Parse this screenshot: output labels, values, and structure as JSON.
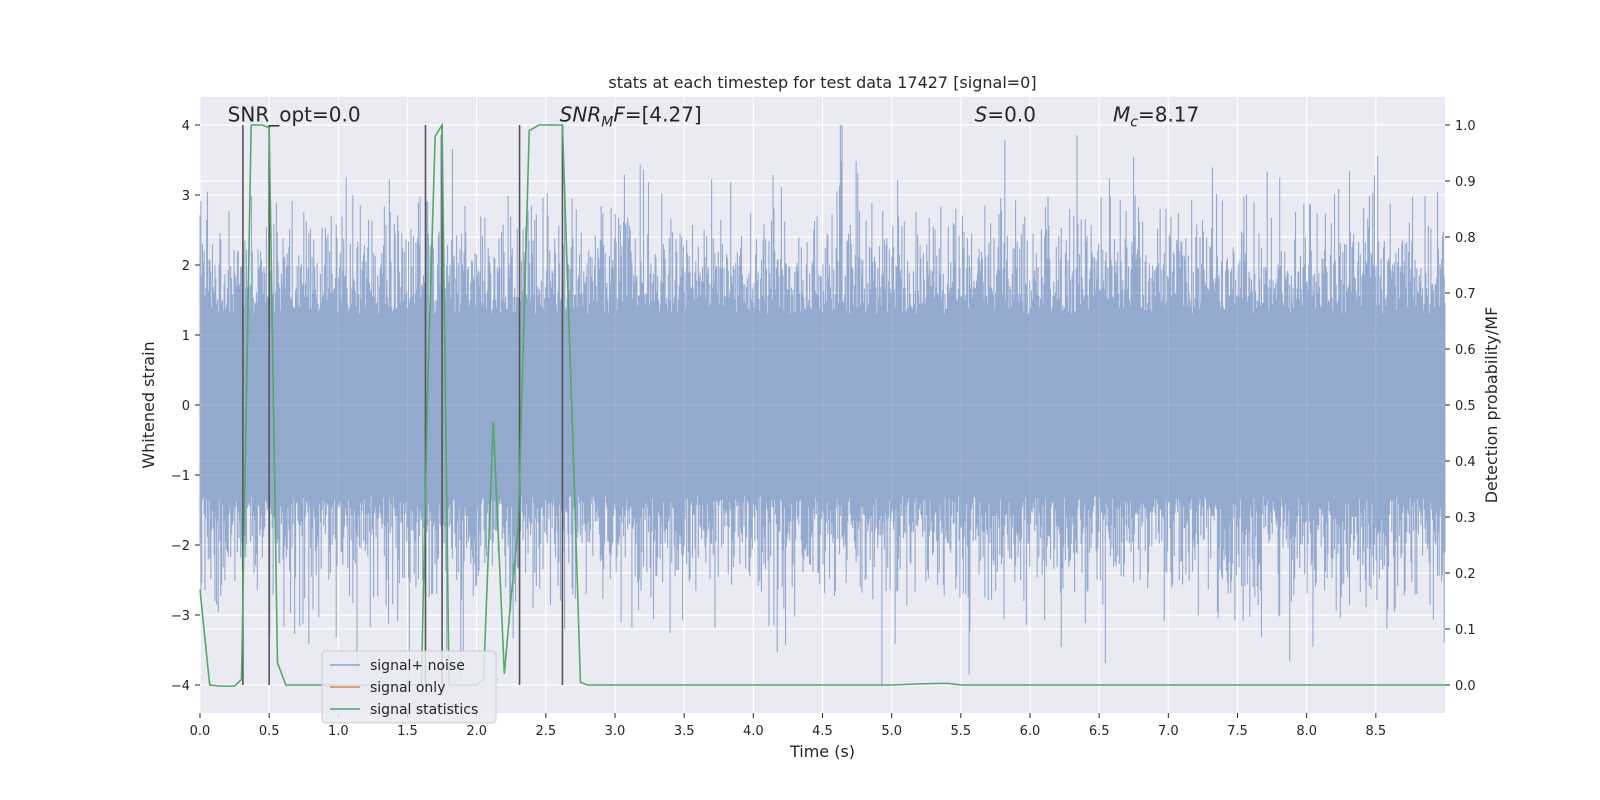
{
  "chart_data": {
    "type": "line",
    "title": "stats at each timestep for test data 17427 [signal=0]",
    "xlabel": "Time (s)",
    "ylabel_left": "Whitened strain",
    "ylabel_right": "Detection probability/MF",
    "xlim": [
      0.0,
      9.0
    ],
    "ylim_left": [
      -4.4,
      4.4
    ],
    "ylim_right": [
      -0.05,
      1.05
    ],
    "x_ticks": [
      "0.0",
      "0.5",
      "1.0",
      "1.5",
      "2.0",
      "2.5",
      "3.0",
      "3.5",
      "4.0",
      "4.5",
      "5.0",
      "5.5",
      "6.0",
      "6.5",
      "7.0",
      "7.5",
      "8.0",
      "8.5"
    ],
    "x_tick_values": [
      0.0,
      0.5,
      1.0,
      1.5,
      2.0,
      2.5,
      3.0,
      3.5,
      4.0,
      4.5,
      5.0,
      5.5,
      6.0,
      6.5,
      7.0,
      7.5,
      8.0,
      8.5
    ],
    "y_left_ticks": [
      "−4",
      "−3",
      "−2",
      "−1",
      "0",
      "1",
      "2",
      "3",
      "4"
    ],
    "y_left_tick_values": [
      -4,
      -3,
      -2,
      -1,
      0,
      1,
      2,
      3,
      4
    ],
    "y_right_ticks": [
      "0.0",
      "0.1",
      "0.2",
      "0.3",
      "0.4",
      "0.5",
      "0.6",
      "0.7",
      "0.8",
      "0.9",
      "1.0"
    ],
    "y_right_tick_values": [
      0.0,
      0.1,
      0.2,
      0.3,
      0.4,
      0.5,
      0.6,
      0.7,
      0.8,
      0.9,
      1.0
    ],
    "grid": true,
    "legend_position": "lower-left",
    "annotations": [
      {
        "text": "SNR_opt=0.0",
        "x": 0.2,
        "y": 4.05
      },
      {
        "main": "SNR",
        "sub": "M",
        "rest": "F=[4.27]",
        "x": 2.6,
        "y": 4.05
      },
      {
        "main": "S",
        "rest": "=0.0",
        "x": 5.6,
        "y": 4.05
      },
      {
        "main": "M",
        "sub": "c",
        "rest": "=8.17",
        "x": 6.6,
        "y": 4.05
      }
    ],
    "series": [
      {
        "name": "signal+ noise",
        "color": "#4c72b0",
        "axis": "left",
        "kind": "noise",
        "values": "dense noisy strain spanning roughly -4 to 4"
      },
      {
        "name": "signal only",
        "color": "#dd8452",
        "axis": "left",
        "values": []
      },
      {
        "name": "signal statistics",
        "color": "#55a868",
        "axis": "right",
        "x": [
          0.0,
          0.07,
          0.15,
          0.25,
          0.3,
          0.37,
          0.45,
          0.5,
          0.56,
          0.62,
          0.7,
          1.0,
          1.3,
          1.6,
          1.65,
          1.7,
          1.75,
          1.8,
          1.9,
          2.0,
          2.05,
          2.12,
          2.2,
          2.25,
          2.3,
          2.38,
          2.45,
          2.55,
          2.62,
          2.7,
          2.75,
          2.8,
          3.0,
          4.0,
          5.0,
          5.2,
          5.4,
          5.5,
          5.6,
          6.0,
          7.0,
          8.0,
          9.0
        ],
        "y": [
          0.17,
          0.0,
          -0.002,
          -0.002,
          0.01,
          1.0,
          1.0,
          0.995,
          0.04,
          0.0,
          0.0,
          0.0,
          0.0,
          0.0,
          0.57,
          0.98,
          1.0,
          0.0,
          0.0,
          0.0,
          0.01,
          0.47,
          0.02,
          0.16,
          0.28,
          0.99,
          1.0,
          1.0,
          1.0,
          0.4,
          0.005,
          0.0,
          0.0,
          0.0,
          0.0,
          0.002,
          0.003,
          0.0,
          0.0,
          0.0,
          0.0,
          0.0,
          0.0
        ]
      }
    ],
    "vertical_lines": {
      "color": "#555555",
      "x": [
        0.31,
        0.5,
        1.63,
        1.75,
        2.31,
        2.62
      ],
      "y_top": 4.0,
      "y_bottom": -4.0
    }
  }
}
